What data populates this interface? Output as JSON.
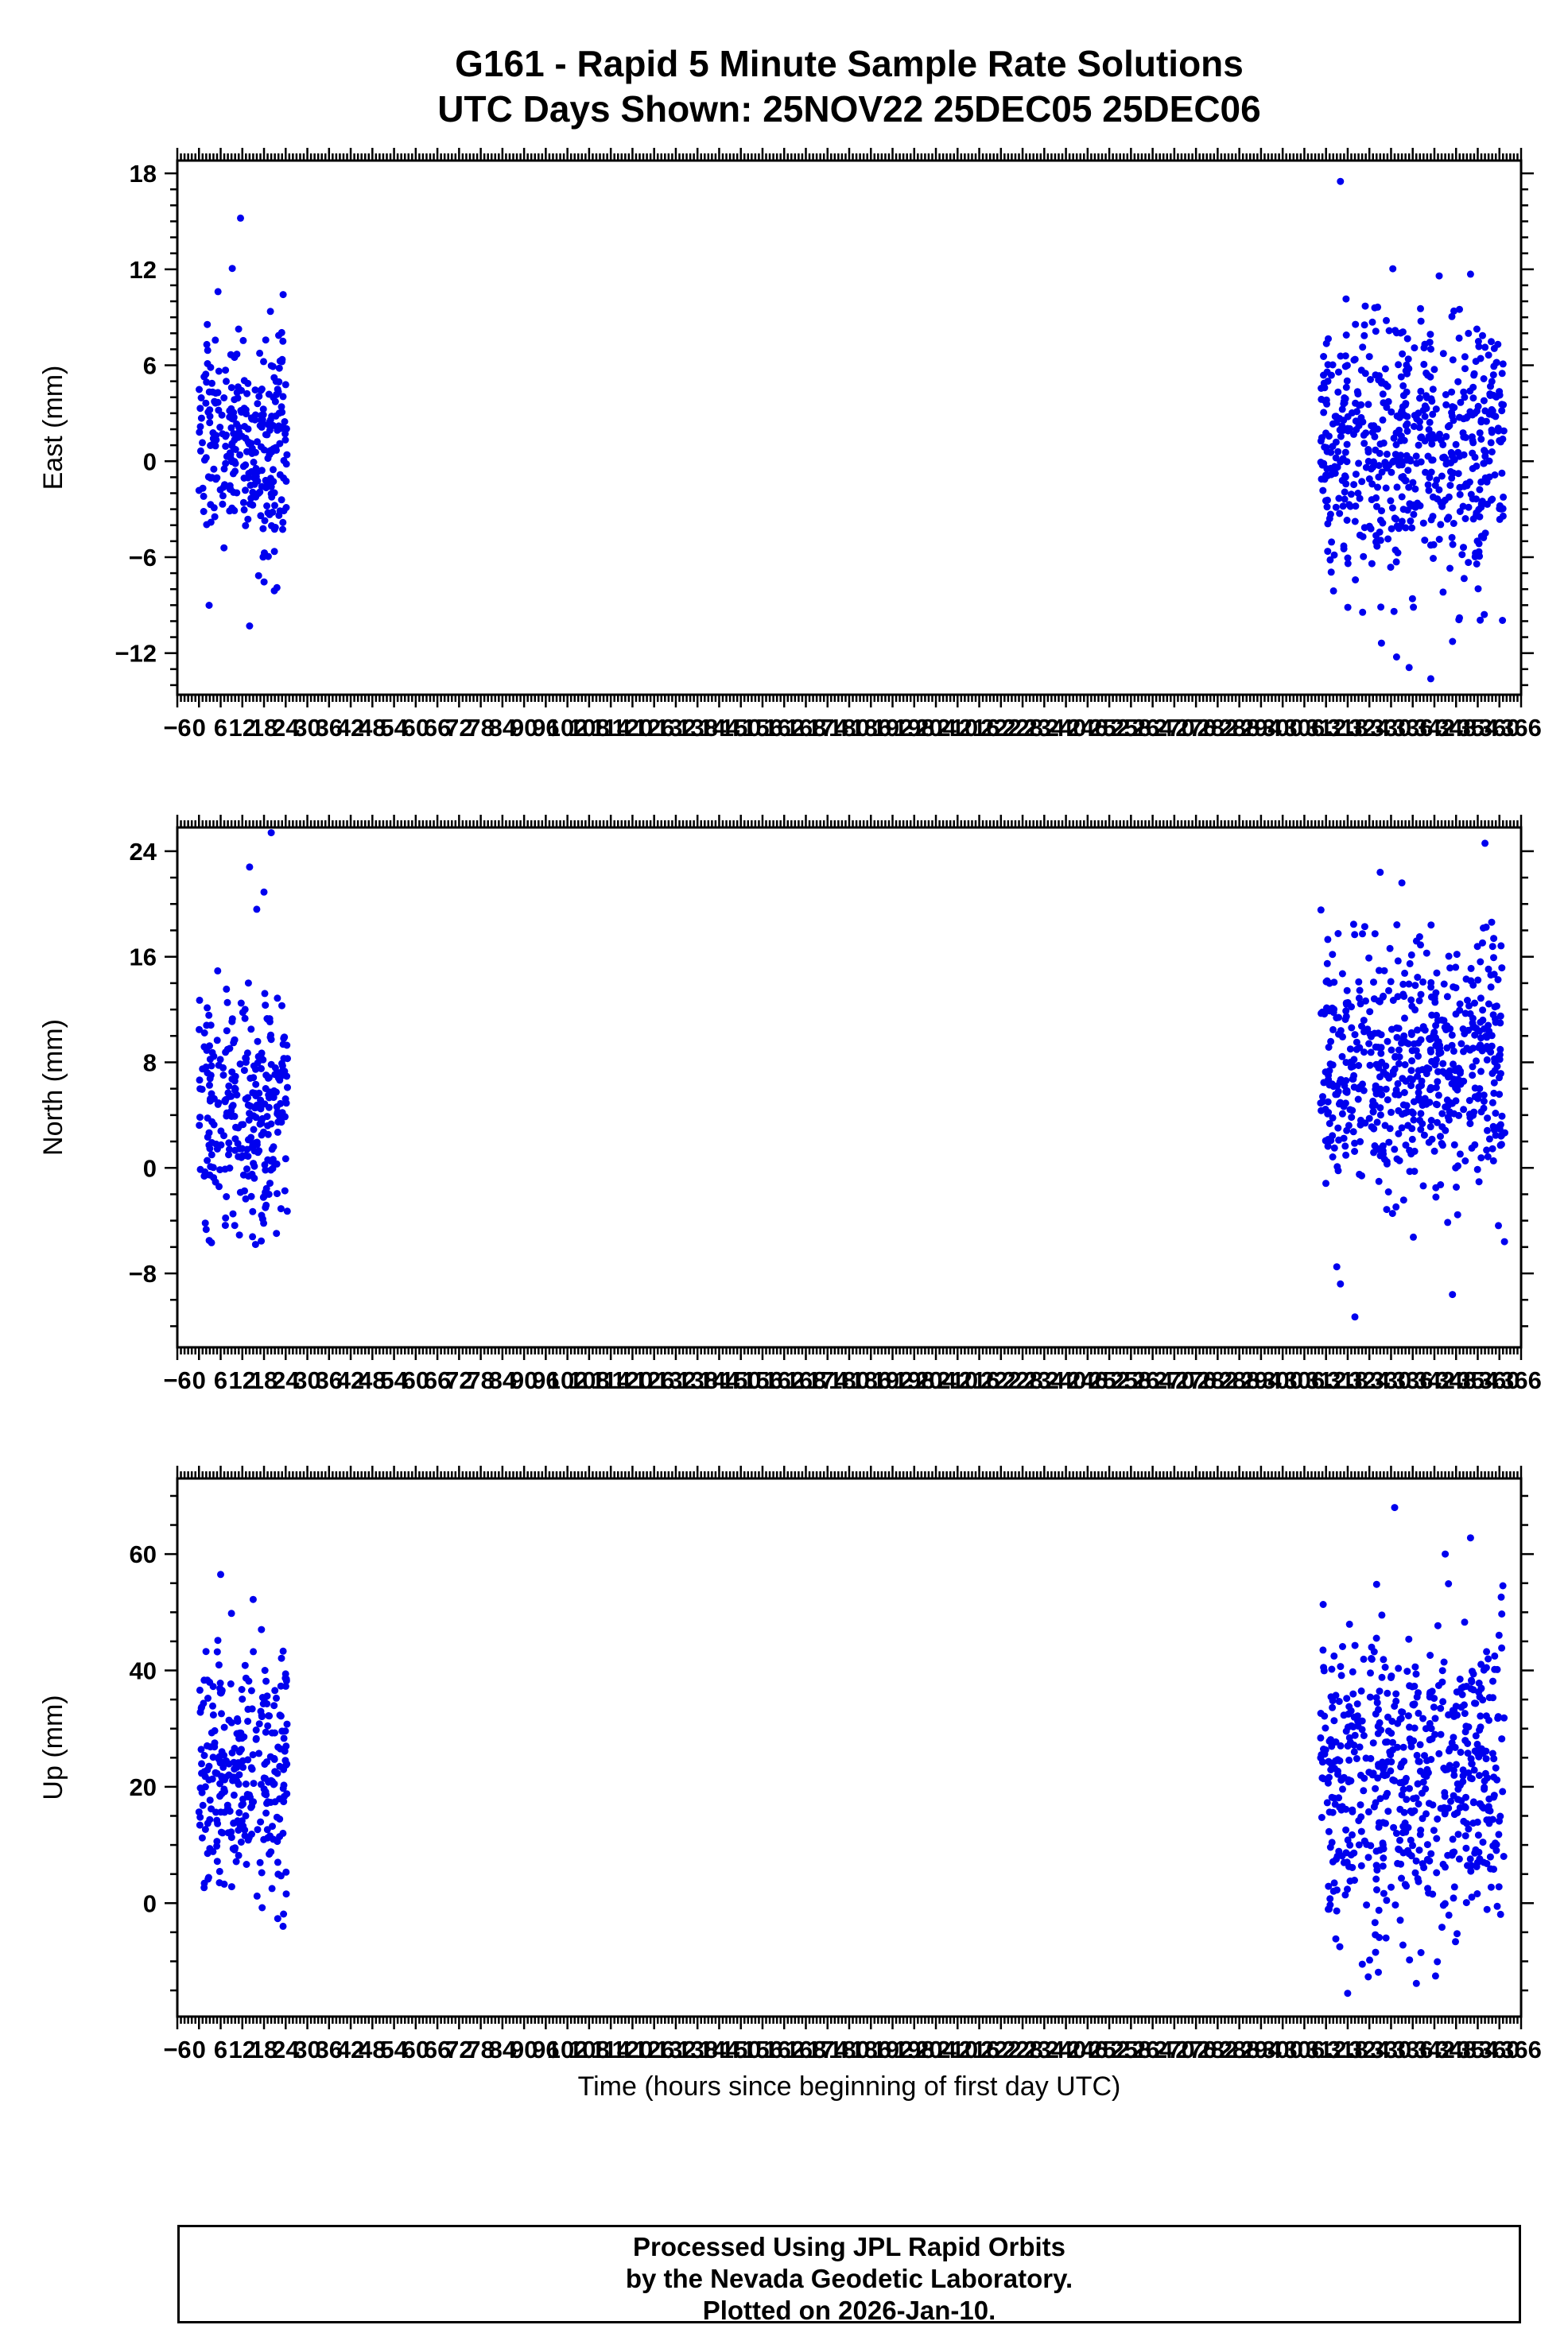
{
  "title": {
    "line1": "G161 - Rapid 5 Minute Sample Rate Solutions",
    "line2": "UTC Days Shown:  25NOV22 25DEC05 25DEC06"
  },
  "x_axis": {
    "label": "Time (hours since beginning of first day UTC)",
    "min": -6,
    "max": 366,
    "major_tick_step": 6,
    "minor_tick_step": 1,
    "tick_labels": [
      -6,
      0,
      6,
      12,
      18,
      24,
      30,
      36,
      42,
      48,
      54,
      60,
      66,
      72,
      78,
      84,
      90,
      96,
      102,
      108,
      114,
      120,
      126,
      132,
      138,
      144,
      150,
      156,
      162,
      168,
      174,
      180,
      186,
      192,
      198,
      204,
      210,
      216,
      222,
      228,
      234,
      240,
      246,
      252,
      258,
      264,
      270,
      276,
      282,
      288,
      294,
      300,
      306,
      312,
      318,
      324,
      330,
      336,
      342,
      348,
      354,
      360,
      366
    ]
  },
  "chart_data": [
    {
      "type": "scatter",
      "panel": "east",
      "ylabel": "East (mm)",
      "ylim": [
        -14.6,
        18.8
      ],
      "yticks": [
        -12,
        -6,
        0,
        6,
        12,
        18
      ],
      "y_minor_step": 1,
      "clusters": [
        {
          "day": "25NOV22",
          "x_range": [
            0,
            24.5
          ],
          "n": 290,
          "y_mean": 1.2,
          "y_std": 3.6,
          "y_range": [
            -9.5,
            12.5
          ]
        },
        {
          "day": "25DEC05 25DEC06",
          "x_range": [
            310.5,
            361.5
          ],
          "n": 580,
          "y_mean": 0.8,
          "y_std": 4.4,
          "y_range": [
            -12.5,
            13.5
          ]
        }
      ],
      "outliers": [
        [
          11.5,
          15.2
        ],
        [
          14,
          -10.3
        ],
        [
          316,
          17.5
        ],
        [
          341,
          -13.6
        ],
        [
          352,
          11.7
        ],
        [
          335,
          -12.9
        ]
      ]
    },
    {
      "type": "scatter",
      "panel": "north",
      "ylabel": "North (mm)",
      "ylim": [
        -13.6,
        25.8
      ],
      "yticks": [
        -8,
        0,
        8,
        16,
        24
      ],
      "y_minor_step": 2,
      "clusters": [
        {
          "day": "25NOV22",
          "x_range": [
            0,
            24.5
          ],
          "n": 290,
          "y_mean": 4.5,
          "y_std": 4.6,
          "y_range": [
            -6.8,
            16.5
          ]
        },
        {
          "day": "25DEC05 25DEC06",
          "x_range": [
            310.5,
            361.5
          ],
          "n": 580,
          "y_mean": 7.2,
          "y_std": 5.0,
          "y_range": [
            -7.5,
            20.5
          ]
        }
      ],
      "outliers": [
        [
          14,
          22.8
        ],
        [
          20,
          25.4
        ],
        [
          18,
          20.9
        ],
        [
          16,
          19.6
        ],
        [
          356,
          24.6
        ],
        [
          327,
          22.4
        ],
        [
          333,
          21.6
        ],
        [
          320,
          -11.3
        ],
        [
          316,
          -8.8
        ],
        [
          347,
          -9.6
        ]
      ]
    },
    {
      "type": "scatter",
      "panel": "up",
      "ylabel": "Up (mm)",
      "ylim": [
        -19.5,
        73
      ],
      "yticks": [
        0,
        20,
        40,
        60
      ],
      "y_minor_step": 5,
      "clusters": [
        {
          "day": "25NOV22",
          "x_range": [
            0,
            24.5
          ],
          "n": 290,
          "y_mean": 22,
          "y_std": 11,
          "y_range": [
            -7.5,
            50
          ]
        },
        {
          "day": "25DEC05 25DEC06",
          "x_range": [
            310.5,
            361.5
          ],
          "n": 580,
          "y_mean": 22,
          "y_std": 13.5,
          "y_range": [
            -13.5,
            55
          ]
        }
      ],
      "outliers": [
        [
          6,
          56.5
        ],
        [
          15,
          52.2
        ],
        [
          9,
          49.8
        ],
        [
          331,
          68
        ],
        [
          352,
          62.8
        ],
        [
          345,
          60
        ],
        [
          326,
          54.8
        ],
        [
          318,
          -15.5
        ],
        [
          337,
          -13.8
        ]
      ]
    }
  ],
  "colors": {
    "marker": "#0000ee",
    "axis": "#000000",
    "background": "#ffffff"
  },
  "footer": {
    "line1": "Processed Using JPL Rapid Orbits",
    "line2": "by the Nevada Geodetic Laboratory.",
    "line3": "Plotted on 2026-Jan-10."
  }
}
